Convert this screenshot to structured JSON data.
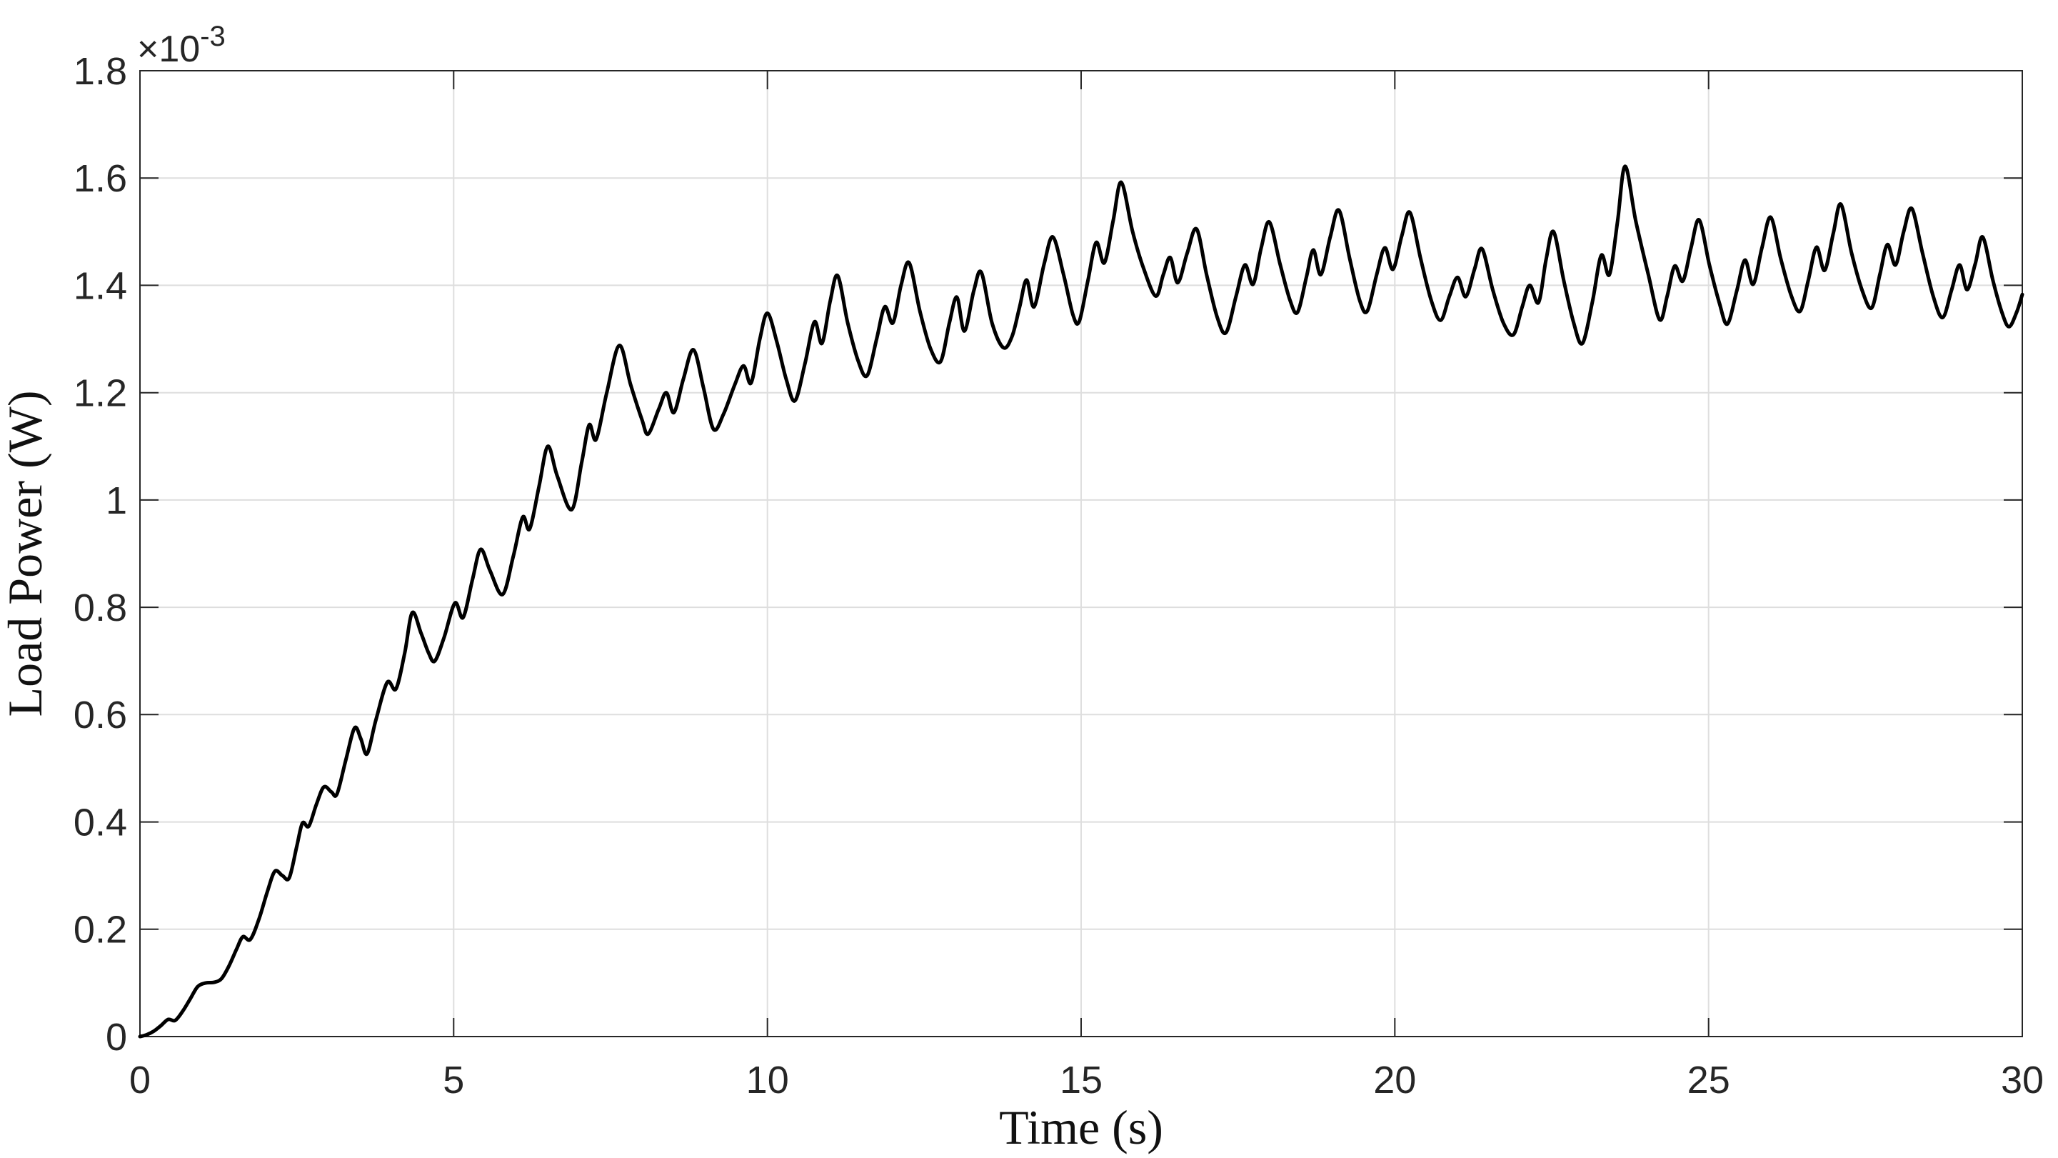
{
  "chart_data": {
    "type": "line",
    "title": "",
    "xlabel": "Time (s)",
    "ylabel": "Load Power (W)",
    "xlim": [
      0,
      30
    ],
    "ylim": [
      0,
      1.8
    ],
    "y_unit_multiplier": "1e-3",
    "y_offset": {
      "base": "×10",
      "exponent": "-3"
    },
    "x_ticks": [
      0,
      5,
      10,
      15,
      20,
      25,
      30
    ],
    "x_tick_labels": [
      "0",
      "5",
      "10",
      "15",
      "20",
      "25",
      "30"
    ],
    "y_ticks": [
      0,
      0.2,
      0.4,
      0.6,
      0.8,
      1,
      1.2,
      1.4,
      1.6,
      1.8
    ],
    "y_tick_labels": [
      "0",
      "0.2",
      "0.4",
      "0.6",
      "0.8",
      "1",
      "1.2",
      "1.4",
      "1.6",
      "1.8"
    ],
    "grid": true,
    "box": true,
    "series": [
      {
        "name": "Load Power",
        "color": "#000000",
        "line_width": 5,
        "points": [
          [
            0.0,
            0.0
          ],
          [
            0.1,
            0.003
          ],
          [
            0.22,
            0.01
          ],
          [
            0.33,
            0.02
          ],
          [
            0.45,
            0.032
          ],
          [
            0.56,
            0.03
          ],
          [
            0.68,
            0.047
          ],
          [
            0.8,
            0.07
          ],
          [
            0.92,
            0.093
          ],
          [
            1.05,
            0.1
          ],
          [
            1.18,
            0.101
          ],
          [
            1.3,
            0.108
          ],
          [
            1.42,
            0.132
          ],
          [
            1.54,
            0.163
          ],
          [
            1.64,
            0.186
          ],
          [
            1.76,
            0.181
          ],
          [
            1.9,
            0.22
          ],
          [
            2.03,
            0.27
          ],
          [
            2.15,
            0.308
          ],
          [
            2.27,
            0.3
          ],
          [
            2.38,
            0.296
          ],
          [
            2.5,
            0.355
          ],
          [
            2.59,
            0.398
          ],
          [
            2.69,
            0.392
          ],
          [
            2.81,
            0.432
          ],
          [
            2.93,
            0.465
          ],
          [
            3.05,
            0.456
          ],
          [
            3.14,
            0.452
          ],
          [
            3.28,
            0.515
          ],
          [
            3.42,
            0.575
          ],
          [
            3.52,
            0.555
          ],
          [
            3.62,
            0.527
          ],
          [
            3.76,
            0.59
          ],
          [
            3.94,
            0.66
          ],
          [
            4.08,
            0.648
          ],
          [
            4.22,
            0.715
          ],
          [
            4.34,
            0.79
          ],
          [
            4.48,
            0.752
          ],
          [
            4.6,
            0.715
          ],
          [
            4.7,
            0.7
          ],
          [
            4.85,
            0.745
          ],
          [
            5.02,
            0.808
          ],
          [
            5.15,
            0.781
          ],
          [
            5.3,
            0.852
          ],
          [
            5.43,
            0.908
          ],
          [
            5.58,
            0.868
          ],
          [
            5.78,
            0.824
          ],
          [
            5.95,
            0.895
          ],
          [
            6.1,
            0.968
          ],
          [
            6.21,
            0.946
          ],
          [
            6.36,
            1.025
          ],
          [
            6.5,
            1.1
          ],
          [
            6.65,
            1.045
          ],
          [
            6.88,
            0.982
          ],
          [
            7.04,
            1.07
          ],
          [
            7.16,
            1.14
          ],
          [
            7.27,
            1.113
          ],
          [
            7.44,
            1.2
          ],
          [
            7.64,
            1.288
          ],
          [
            7.82,
            1.215
          ],
          [
            8.0,
            1.15
          ],
          [
            8.1,
            1.123
          ],
          [
            8.27,
            1.17
          ],
          [
            8.39,
            1.2
          ],
          [
            8.51,
            1.163
          ],
          [
            8.66,
            1.225
          ],
          [
            8.82,
            1.28
          ],
          [
            8.98,
            1.21
          ],
          [
            9.14,
            1.132
          ],
          [
            9.3,
            1.16
          ],
          [
            9.48,
            1.215
          ],
          [
            9.62,
            1.25
          ],
          [
            9.74,
            1.218
          ],
          [
            9.88,
            1.3
          ],
          [
            10.0,
            1.348
          ],
          [
            10.15,
            1.295
          ],
          [
            10.3,
            1.225
          ],
          [
            10.44,
            1.185
          ],
          [
            10.6,
            1.255
          ],
          [
            10.75,
            1.332
          ],
          [
            10.87,
            1.292
          ],
          [
            11.0,
            1.37
          ],
          [
            11.12,
            1.418
          ],
          [
            11.28,
            1.33
          ],
          [
            11.45,
            1.258
          ],
          [
            11.59,
            1.232
          ],
          [
            11.74,
            1.3
          ],
          [
            11.87,
            1.36
          ],
          [
            12.0,
            1.33
          ],
          [
            12.13,
            1.4
          ],
          [
            12.26,
            1.442
          ],
          [
            12.43,
            1.352
          ],
          [
            12.6,
            1.282
          ],
          [
            12.76,
            1.258
          ],
          [
            12.9,
            1.33
          ],
          [
            13.02,
            1.378
          ],
          [
            13.14,
            1.315
          ],
          [
            13.29,
            1.39
          ],
          [
            13.41,
            1.424
          ],
          [
            13.58,
            1.33
          ],
          [
            13.76,
            1.284
          ],
          [
            13.9,
            1.305
          ],
          [
            14.02,
            1.36
          ],
          [
            14.13,
            1.41
          ],
          [
            14.25,
            1.36
          ],
          [
            14.41,
            1.44
          ],
          [
            14.55,
            1.49
          ],
          [
            14.72,
            1.42
          ],
          [
            14.87,
            1.345
          ],
          [
            14.97,
            1.333
          ],
          [
            15.11,
            1.41
          ],
          [
            15.24,
            1.48
          ],
          [
            15.37,
            1.442
          ],
          [
            15.51,
            1.52
          ],
          [
            15.64,
            1.592
          ],
          [
            15.82,
            1.5
          ],
          [
            16.0,
            1.43
          ],
          [
            16.19,
            1.38
          ],
          [
            16.31,
            1.42
          ],
          [
            16.42,
            1.452
          ],
          [
            16.54,
            1.405
          ],
          [
            16.69,
            1.46
          ],
          [
            16.84,
            1.505
          ],
          [
            17.0,
            1.42
          ],
          [
            17.17,
            1.34
          ],
          [
            17.31,
            1.312
          ],
          [
            17.47,
            1.38
          ],
          [
            17.61,
            1.438
          ],
          [
            17.74,
            1.402
          ],
          [
            17.87,
            1.47
          ],
          [
            18.0,
            1.518
          ],
          [
            18.17,
            1.44
          ],
          [
            18.33,
            1.372
          ],
          [
            18.45,
            1.35
          ],
          [
            18.59,
            1.415
          ],
          [
            18.7,
            1.466
          ],
          [
            18.82,
            1.42
          ],
          [
            18.97,
            1.49
          ],
          [
            19.11,
            1.54
          ],
          [
            19.28,
            1.45
          ],
          [
            19.44,
            1.372
          ],
          [
            19.56,
            1.352
          ],
          [
            19.71,
            1.42
          ],
          [
            19.84,
            1.47
          ],
          [
            19.97,
            1.43
          ],
          [
            20.11,
            1.492
          ],
          [
            20.24,
            1.536
          ],
          [
            20.41,
            1.45
          ],
          [
            20.58,
            1.372
          ],
          [
            20.73,
            1.335
          ],
          [
            20.87,
            1.38
          ],
          [
            21.0,
            1.415
          ],
          [
            21.13,
            1.379
          ],
          [
            21.27,
            1.43
          ],
          [
            21.39,
            1.468
          ],
          [
            21.56,
            1.392
          ],
          [
            21.73,
            1.33
          ],
          [
            21.89,
            1.308
          ],
          [
            22.03,
            1.36
          ],
          [
            22.15,
            1.4
          ],
          [
            22.29,
            1.368
          ],
          [
            22.41,
            1.448
          ],
          [
            22.53,
            1.5
          ],
          [
            22.69,
            1.41
          ],
          [
            22.85,
            1.33
          ],
          [
            22.99,
            1.292
          ],
          [
            23.15,
            1.37
          ],
          [
            23.29,
            1.456
          ],
          [
            23.42,
            1.42
          ],
          [
            23.55,
            1.52
          ],
          [
            23.67,
            1.622
          ],
          [
            23.84,
            1.52
          ],
          [
            24.04,
            1.42
          ],
          [
            24.22,
            1.336
          ],
          [
            24.34,
            1.38
          ],
          [
            24.46,
            1.436
          ],
          [
            24.59,
            1.408
          ],
          [
            24.72,
            1.47
          ],
          [
            24.85,
            1.522
          ],
          [
            25.01,
            1.44
          ],
          [
            25.17,
            1.368
          ],
          [
            25.3,
            1.328
          ],
          [
            25.45,
            1.39
          ],
          [
            25.58,
            1.447
          ],
          [
            25.71,
            1.402
          ],
          [
            25.85,
            1.47
          ],
          [
            25.99,
            1.527
          ],
          [
            26.15,
            1.45
          ],
          [
            26.32,
            1.38
          ],
          [
            26.46,
            1.352
          ],
          [
            26.59,
            1.41
          ],
          [
            26.72,
            1.471
          ],
          [
            26.85,
            1.428
          ],
          [
            26.99,
            1.498
          ],
          [
            27.11,
            1.551
          ],
          [
            27.28,
            1.46
          ],
          [
            27.45,
            1.39
          ],
          [
            27.6,
            1.358
          ],
          [
            27.73,
            1.42
          ],
          [
            27.85,
            1.476
          ],
          [
            27.98,
            1.438
          ],
          [
            28.11,
            1.5
          ],
          [
            28.24,
            1.543
          ],
          [
            28.41,
            1.46
          ],
          [
            28.58,
            1.38
          ],
          [
            28.73,
            1.34
          ],
          [
            28.87,
            1.39
          ],
          [
            29.0,
            1.438
          ],
          [
            29.12,
            1.392
          ],
          [
            29.25,
            1.44
          ],
          [
            29.37,
            1.49
          ],
          [
            29.53,
            1.41
          ],
          [
            29.68,
            1.348
          ],
          [
            29.79,
            1.323
          ],
          [
            29.91,
            1.35
          ],
          [
            30.0,
            1.383
          ]
        ]
      }
    ]
  },
  "colors": {
    "line": "#000000",
    "grid": "#dedede",
    "axis": "#262626",
    "tick_label": "#262626",
    "axis_label": "#111111",
    "background": "#ffffff"
  }
}
